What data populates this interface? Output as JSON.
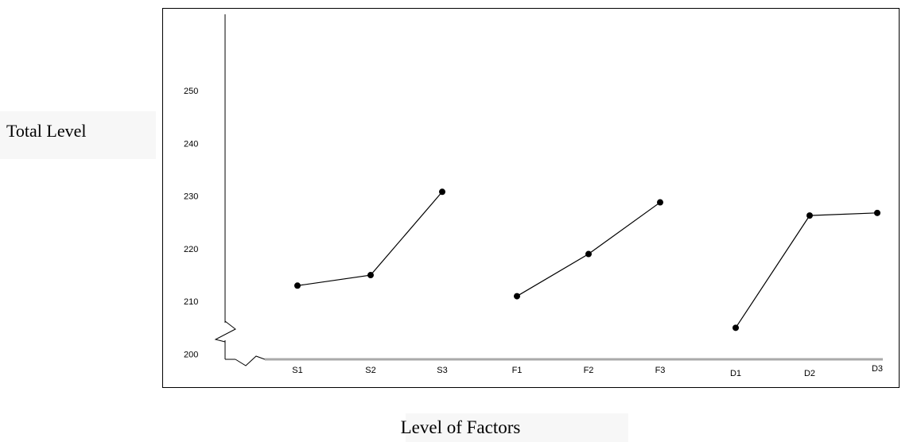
{
  "chart_data": {
    "type": "line",
    "title": "",
    "xlabel": "Level of Factors",
    "ylabel": "Total Level",
    "categories": [
      "S1",
      "S2",
      "S3",
      "F1",
      "F2",
      "F3",
      "D1",
      "D2",
      "D3"
    ],
    "series": [
      {
        "x": [
          "S1",
          "S2",
          "S3"
        ],
        "values": [
          213,
          215,
          230.8
        ]
      },
      {
        "x": [
          "F1",
          "F2",
          "F3"
        ],
        "values": [
          211,
          219,
          228.8
        ]
      },
      {
        "x": [
          "D1",
          "D2",
          "D3"
        ],
        "values": [
          205,
          226.3,
          226.8
        ]
      }
    ],
    "yticks": [
      "200",
      "210",
      "220",
      "230",
      "240",
      "250"
    ],
    "ylim": [
      191,
      255
    ],
    "grid": false,
    "legend": "none",
    "axis_break": true,
    "colors": {
      "line": "#000000",
      "marker": "#000000"
    }
  }
}
